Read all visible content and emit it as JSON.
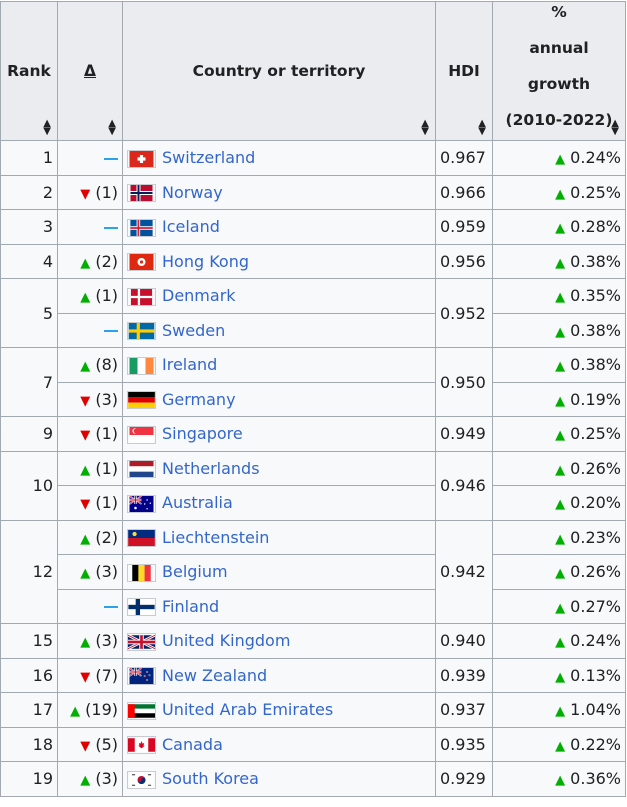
{
  "headers": {
    "rank": "Rank",
    "delta": "Δ",
    "country": "Country or territory",
    "hdi": "HDI",
    "growth_l1": "%",
    "growth_l2": "annual growth",
    "growth_l3": "(2010-2022)"
  },
  "rows": [
    {
      "rank": "1",
      "rankspan": 1,
      "delta_dir": "same",
      "delta_val": "",
      "country": "Switzerland",
      "flag": "switzerland-flag",
      "hdi": "0.967",
      "hdispan": 1,
      "growth": "0.24%"
    },
    {
      "rank": "2",
      "rankspan": 1,
      "delta_dir": "down",
      "delta_val": "(1)",
      "country": "Norway",
      "flag": "norway-flag",
      "hdi": "0.966",
      "hdispan": 1,
      "growth": "0.25%"
    },
    {
      "rank": "3",
      "rankspan": 1,
      "delta_dir": "same",
      "delta_val": "",
      "country": "Iceland",
      "flag": "iceland-flag",
      "hdi": "0.959",
      "hdispan": 1,
      "growth": "0.28%"
    },
    {
      "rank": "4",
      "rankspan": 1,
      "delta_dir": "up",
      "delta_val": "(2)",
      "country": "Hong Kong",
      "flag": "hong-kong-flag",
      "hdi": "0.956",
      "hdispan": 1,
      "growth": "0.38%"
    },
    {
      "rank": "5",
      "rankspan": 2,
      "delta_dir": "up",
      "delta_val": "(1)",
      "country": "Denmark",
      "flag": "denmark-flag",
      "hdi": "0.952",
      "hdispan": 2,
      "growth": "0.35%"
    },
    {
      "rank": null,
      "rankspan": 0,
      "delta_dir": "same",
      "delta_val": "",
      "country": "Sweden",
      "flag": "sweden-flag",
      "hdi": null,
      "hdispan": 0,
      "growth": "0.38%"
    },
    {
      "rank": "7",
      "rankspan": 2,
      "delta_dir": "up",
      "delta_val": "(8)",
      "country": "Ireland",
      "flag": "ireland-flag",
      "hdi": "0.950",
      "hdispan": 2,
      "growth": "0.38%"
    },
    {
      "rank": null,
      "rankspan": 0,
      "delta_dir": "down",
      "delta_val": "(3)",
      "country": "Germany",
      "flag": "germany-flag",
      "hdi": null,
      "hdispan": 0,
      "growth": "0.19%"
    },
    {
      "rank": "9",
      "rankspan": 1,
      "delta_dir": "down",
      "delta_val": "(1)",
      "country": "Singapore",
      "flag": "singapore-flag",
      "hdi": "0.949",
      "hdispan": 1,
      "growth": "0.25%"
    },
    {
      "rank": "10",
      "rankspan": 2,
      "delta_dir": "up",
      "delta_val": "(1)",
      "country": "Netherlands",
      "flag": "netherlands-flag",
      "hdi": "0.946",
      "hdispan": 2,
      "growth": "0.26%"
    },
    {
      "rank": null,
      "rankspan": 0,
      "delta_dir": "down",
      "delta_val": "(1)",
      "country": "Australia",
      "flag": "australia-flag",
      "hdi": null,
      "hdispan": 0,
      "growth": "0.20%"
    },
    {
      "rank": "12",
      "rankspan": 3,
      "delta_dir": "up",
      "delta_val": "(2)",
      "country": "Liechtenstein",
      "flag": "liechtenstein-flag",
      "hdi": "0.942",
      "hdispan": 3,
      "growth": "0.23%"
    },
    {
      "rank": null,
      "rankspan": 0,
      "delta_dir": "up",
      "delta_val": "(3)",
      "country": "Belgium",
      "flag": "belgium-flag",
      "hdi": null,
      "hdispan": 0,
      "growth": "0.26%"
    },
    {
      "rank": null,
      "rankspan": 0,
      "delta_dir": "same",
      "delta_val": "",
      "country": "Finland",
      "flag": "finland-flag",
      "hdi": null,
      "hdispan": 0,
      "growth": "0.27%"
    },
    {
      "rank": "15",
      "rankspan": 1,
      "delta_dir": "up",
      "delta_val": "(3)",
      "country": "United Kingdom",
      "flag": "united-kingdom-flag",
      "hdi": "0.940",
      "hdispan": 1,
      "growth": "0.24%"
    },
    {
      "rank": "16",
      "rankspan": 1,
      "delta_dir": "down",
      "delta_val": "(7)",
      "country": "New Zealand",
      "flag": "new-zealand-flag",
      "hdi": "0.939",
      "hdispan": 1,
      "growth": "0.13%"
    },
    {
      "rank": "17",
      "rankspan": 1,
      "delta_dir": "up",
      "delta_val": "(19)",
      "country": "United Arab Emirates",
      "flag": "uae-flag",
      "hdi": "0.937",
      "hdispan": 1,
      "growth": "1.04%"
    },
    {
      "rank": "18",
      "rankspan": 1,
      "delta_dir": "down",
      "delta_val": "(5)",
      "country": "Canada",
      "flag": "canada-flag",
      "hdi": "0.935",
      "hdispan": 1,
      "growth": "0.22%"
    },
    {
      "rank": "19",
      "rankspan": 1,
      "delta_dir": "up",
      "delta_val": "(3)",
      "country": "South Korea",
      "flag": "south-korea-flag",
      "hdi": "0.929",
      "hdispan": 1,
      "growth": "0.36%"
    }
  ],
  "colors": {
    "link": "#3366cc",
    "up": "#00af00",
    "down": "#e00000",
    "same": "#2aa3ea",
    "header_bg": "#eaecf0",
    "border": "#a2a9b1"
  }
}
